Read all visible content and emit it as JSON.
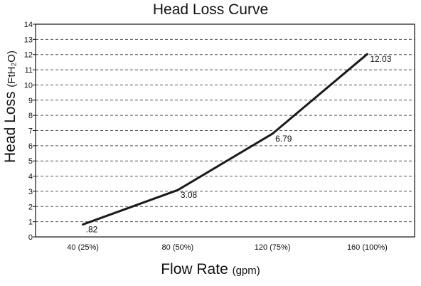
{
  "chart_data": {
    "type": "line",
    "title": "Head Loss Curve",
    "xlabel": "Flow Rate",
    "xlabel_unit": "(gpm)",
    "ylabel": "Head Loss",
    "ylabel_unit": "(FtH₂O)",
    "categories": [
      "40 (25%)",
      "80 (50%)",
      "120 (75%)",
      "160 (100%)"
    ],
    "values": [
      0.82,
      3.08,
      6.79,
      12.03
    ],
    "data_labels": [
      ".82",
      "3.08",
      "6.79",
      "12.03"
    ],
    "yticks": [
      "0",
      "1",
      "2",
      "3",
      "4",
      "5",
      "6",
      "7",
      "8",
      "9",
      "10",
      "11",
      "12",
      "13",
      "14"
    ],
    "ylim": [
      0,
      14
    ],
    "grid": "horizontal dashed",
    "line_color": "#1a1a1a"
  }
}
